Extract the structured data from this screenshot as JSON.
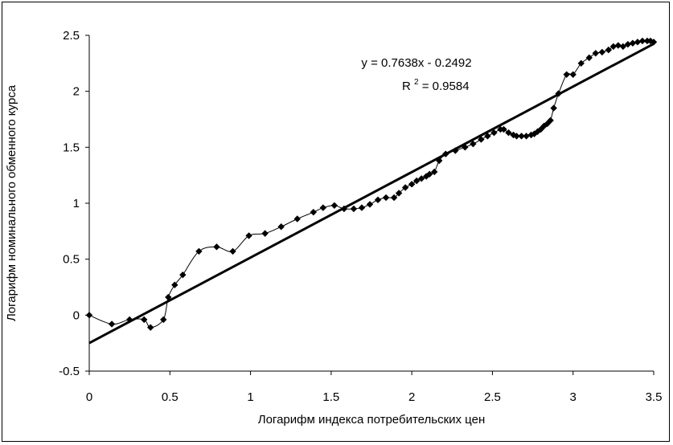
{
  "chart_data": {
    "type": "scatter",
    "xlabel": "Логарифм индекса потребительских цен",
    "ylabel": "Логарифм номинального обменного курса",
    "xlim": [
      0,
      3.5
    ],
    "ylim": [
      -0.5,
      2.5
    ],
    "x_ticks": [
      "0",
      "0.5",
      "1",
      "1.5",
      "2",
      "2.5",
      "3",
      "3.5"
    ],
    "y_ticks": [
      "-0.5",
      "0",
      "0.5",
      "1",
      "1.5",
      "2",
      "2.5"
    ],
    "grid": false,
    "legend": "none",
    "series": [
      {
        "marker": "diamond",
        "connected": true,
        "color": "#000000",
        "points": [
          [
            0.0,
            0.0
          ],
          [
            0.14,
            -0.08
          ],
          [
            0.25,
            -0.04
          ],
          [
            0.34,
            -0.04
          ],
          [
            0.38,
            -0.11
          ],
          [
            0.46,
            -0.04
          ],
          [
            0.49,
            0.16
          ],
          [
            0.53,
            0.27
          ],
          [
            0.58,
            0.36
          ],
          [
            0.68,
            0.57
          ],
          [
            0.79,
            0.61
          ],
          [
            0.89,
            0.57
          ],
          [
            0.99,
            0.71
          ],
          [
            1.09,
            0.73
          ],
          [
            1.19,
            0.79
          ],
          [
            1.29,
            0.86
          ],
          [
            1.39,
            0.92
          ],
          [
            1.45,
            0.96
          ],
          [
            1.52,
            0.98
          ],
          [
            1.58,
            0.95
          ],
          [
            1.64,
            0.95
          ],
          [
            1.69,
            0.96
          ],
          [
            1.74,
            0.99
          ],
          [
            1.79,
            1.03
          ],
          [
            1.84,
            1.05
          ],
          [
            1.89,
            1.05
          ],
          [
            1.92,
            1.09
          ],
          [
            1.96,
            1.14
          ],
          [
            2.0,
            1.17
          ],
          [
            2.03,
            1.2
          ],
          [
            2.06,
            1.22
          ],
          [
            2.09,
            1.24
          ],
          [
            2.11,
            1.26
          ],
          [
            2.14,
            1.28
          ],
          [
            2.17,
            1.38
          ],
          [
            2.21,
            1.44
          ],
          [
            2.27,
            1.47
          ],
          [
            2.33,
            1.5
          ],
          [
            2.38,
            1.53
          ],
          [
            2.43,
            1.57
          ],
          [
            2.47,
            1.6
          ],
          [
            2.51,
            1.63
          ],
          [
            2.55,
            1.66
          ],
          [
            2.57,
            1.66
          ],
          [
            2.6,
            1.63
          ],
          [
            2.63,
            1.61
          ],
          [
            2.65,
            1.6
          ],
          [
            2.68,
            1.6
          ],
          [
            2.71,
            1.6
          ],
          [
            2.74,
            1.61
          ],
          [
            2.76,
            1.62
          ],
          [
            2.78,
            1.64
          ],
          [
            2.8,
            1.66
          ],
          [
            2.82,
            1.69
          ],
          [
            2.84,
            1.71
          ],
          [
            2.86,
            1.74
          ],
          [
            2.88,
            1.85
          ],
          [
            2.91,
            1.98
          ],
          [
            2.96,
            2.15
          ],
          [
            3.0,
            2.15
          ],
          [
            3.05,
            2.25
          ],
          [
            3.1,
            2.3
          ],
          [
            3.14,
            2.34
          ],
          [
            3.18,
            2.35
          ],
          [
            3.22,
            2.37
          ],
          [
            3.25,
            2.4
          ],
          [
            3.28,
            2.41
          ],
          [
            3.31,
            2.4
          ],
          [
            3.34,
            2.42
          ],
          [
            3.37,
            2.43
          ],
          [
            3.4,
            2.44
          ],
          [
            3.43,
            2.45
          ],
          [
            3.46,
            2.45
          ],
          [
            3.48,
            2.45
          ],
          [
            3.5,
            2.44
          ]
        ]
      }
    ],
    "trendline": {
      "slope": 0.7638,
      "intercept": -0.2492,
      "x_range": [
        0,
        3.5
      ]
    },
    "annotations": {
      "equation": "y = 0.7638x - 0.2492",
      "r2_label": "R",
      "r2_superscript": "2",
      "r2_value": " = 0.9584"
    }
  }
}
